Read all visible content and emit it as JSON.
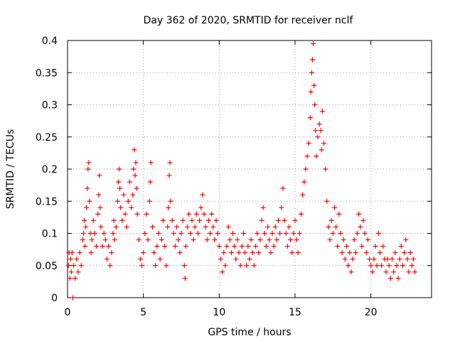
{
  "chart_data": {
    "type": "scatter",
    "title": "Day 362 of 2020, SRMTID for receiver nclf",
    "xlabel": "GPS time / hours",
    "ylabel": "SRMTID / TECUs",
    "xlim": [
      0,
      24
    ],
    "ylim": [
      0,
      0.4
    ],
    "xticks": [
      0,
      5,
      10,
      15,
      20
    ],
    "yticks": [
      0,
      0.05,
      0.1,
      0.15,
      0.2,
      0.25,
      0.3,
      0.35,
      0.4
    ],
    "grid": true,
    "marker": "plus",
    "series": [
      {
        "name": "SRMTID",
        "color": "#ff0000",
        "points": [
          [
            0.05,
            0.05
          ],
          [
            0.1,
            0.07
          ],
          [
            0.15,
            0.03
          ],
          [
            0.2,
            0.06
          ],
          [
            0.25,
            0.04
          ],
          [
            0.3,
            0.07
          ],
          [
            0.35,
            0.0
          ],
          [
            0.4,
            0.05
          ],
          [
            0.5,
            0.03
          ],
          [
            0.6,
            0.06
          ],
          [
            0.7,
            0.04
          ],
          [
            0.8,
            0.07
          ],
          [
            0.9,
            0.05
          ],
          [
            1.0,
            0.09
          ],
          [
            1.05,
            0.1
          ],
          [
            1.1,
            0.12
          ],
          [
            1.15,
            0.08
          ],
          [
            1.2,
            0.11
          ],
          [
            1.25,
            0.14
          ],
          [
            1.3,
            0.17
          ],
          [
            1.35,
            0.2
          ],
          [
            1.4,
            0.21
          ],
          [
            1.45,
            0.15
          ],
          [
            1.5,
            0.1
          ],
          [
            1.55,
            0.07
          ],
          [
            1.6,
            0.09
          ],
          [
            1.7,
            0.12
          ],
          [
            1.8,
            0.1
          ],
          [
            1.9,
            0.08
          ],
          [
            2.0,
            0.13
          ],
          [
            2.05,
            0.16
          ],
          [
            2.1,
            0.19
          ],
          [
            2.15,
            0.14
          ],
          [
            2.2,
            0.11
          ],
          [
            2.3,
            0.08
          ],
          [
            2.4,
            0.1
          ],
          [
            2.5,
            0.09
          ],
          [
            2.6,
            0.06
          ],
          [
            2.7,
            0.08
          ],
          [
            2.8,
            0.05
          ],
          [
            2.9,
            0.07
          ],
          [
            3.0,
            0.1
          ],
          [
            3.05,
            0.12
          ],
          [
            3.1,
            0.09
          ],
          [
            3.2,
            0.11
          ],
          [
            3.3,
            0.15
          ],
          [
            3.35,
            0.18
          ],
          [
            3.4,
            0.2
          ],
          [
            3.45,
            0.17
          ],
          [
            3.5,
            0.14
          ],
          [
            3.6,
            0.12
          ],
          [
            3.7,
            0.16
          ],
          [
            3.8,
            0.13
          ],
          [
            3.9,
            0.11
          ],
          [
            4.0,
            0.15
          ],
          [
            4.1,
            0.18
          ],
          [
            4.2,
            0.14
          ],
          [
            4.3,
            0.16
          ],
          [
            4.35,
            0.2
          ],
          [
            4.4,
            0.23
          ],
          [
            4.45,
            0.19
          ],
          [
            4.5,
            0.21
          ],
          [
            4.55,
            0.17
          ],
          [
            4.6,
            0.13
          ],
          [
            4.7,
            0.09
          ],
          [
            4.8,
            0.06
          ],
          [
            4.9,
            0.05
          ],
          [
            5.0,
            0.07
          ],
          [
            5.1,
            0.1
          ],
          [
            5.2,
            0.13
          ],
          [
            5.3,
            0.09
          ],
          [
            5.4,
            0.15
          ],
          [
            5.45,
            0.18
          ],
          [
            5.5,
            0.21
          ],
          [
            5.6,
            0.11
          ],
          [
            5.7,
            0.07
          ],
          [
            5.8,
            0.05
          ],
          [
            5.9,
            0.08
          ],
          [
            6.0,
            0.1
          ],
          [
            6.1,
            0.06
          ],
          [
            6.2,
            0.09
          ],
          [
            6.3,
            0.12
          ],
          [
            6.4,
            0.08
          ],
          [
            6.5,
            0.05
          ],
          [
            6.6,
            0.11
          ],
          [
            6.65,
            0.14
          ],
          [
            6.7,
            0.19
          ],
          [
            6.75,
            0.21
          ],
          [
            6.8,
            0.15
          ],
          [
            6.9,
            0.12
          ],
          [
            7.0,
            0.1
          ],
          [
            7.1,
            0.08
          ],
          [
            7.2,
            0.11
          ],
          [
            7.3,
            0.09
          ],
          [
            7.4,
            0.07
          ],
          [
            7.5,
            0.1
          ],
          [
            7.6,
            0.12
          ],
          [
            7.7,
            0.05
          ],
          [
            7.75,
            0.03
          ],
          [
            7.8,
            0.08
          ],
          [
            7.9,
            0.11
          ],
          [
            8.0,
            0.13
          ],
          [
            8.1,
            0.1
          ],
          [
            8.2,
            0.12
          ],
          [
            8.3,
            0.09
          ],
          [
            8.4,
            0.11
          ],
          [
            8.5,
            0.13
          ],
          [
            8.6,
            0.1
          ],
          [
            8.7,
            0.12
          ],
          [
            8.8,
            0.14
          ],
          [
            8.9,
            0.16
          ],
          [
            9.0,
            0.13
          ],
          [
            9.1,
            0.11
          ],
          [
            9.2,
            0.09
          ],
          [
            9.3,
            0.12
          ],
          [
            9.4,
            0.1
          ],
          [
            9.5,
            0.13
          ],
          [
            9.6,
            0.11
          ],
          [
            9.7,
            0.09
          ],
          [
            9.8,
            0.12
          ],
          [
            9.9,
            0.1
          ],
          [
            10.0,
            0.08
          ],
          [
            10.1,
            0.06
          ],
          [
            10.2,
            0.04
          ],
          [
            10.3,
            0.07
          ],
          [
            10.4,
            0.05
          ],
          [
            10.5,
            0.08
          ],
          [
            10.6,
            0.11
          ],
          [
            10.7,
            0.09
          ],
          [
            10.8,
            0.07
          ],
          [
            10.9,
            0.1
          ],
          [
            11.0,
            0.08
          ],
          [
            11.1,
            0.06
          ],
          [
            11.2,
            0.09
          ],
          [
            11.3,
            0.07
          ],
          [
            11.4,
            0.05
          ],
          [
            11.5,
            0.08
          ],
          [
            11.6,
            0.1
          ],
          [
            11.7,
            0.07
          ],
          [
            11.8,
            0.05
          ],
          [
            11.9,
            0.08
          ],
          [
            12.0,
            0.06
          ],
          [
            12.1,
            0.09
          ],
          [
            12.2,
            0.07
          ],
          [
            12.3,
            0.05
          ],
          [
            12.4,
            0.08
          ],
          [
            12.5,
            0.1
          ],
          [
            12.6,
            0.07
          ],
          [
            12.7,
            0.09
          ],
          [
            12.8,
            0.12
          ],
          [
            12.9,
            0.14
          ],
          [
            13.0,
            0.1
          ],
          [
            13.1,
            0.08
          ],
          [
            13.2,
            0.11
          ],
          [
            13.3,
            0.09
          ],
          [
            13.4,
            0.07
          ],
          [
            13.5,
            0.1
          ],
          [
            13.6,
            0.08
          ],
          [
            13.7,
            0.11
          ],
          [
            13.8,
            0.09
          ],
          [
            13.9,
            0.12
          ],
          [
            14.0,
            0.1
          ],
          [
            14.1,
            0.14
          ],
          [
            14.2,
            0.17
          ],
          [
            14.3,
            0.12
          ],
          [
            14.4,
            0.1
          ],
          [
            14.5,
            0.08
          ],
          [
            14.6,
            0.11
          ],
          [
            14.7,
            0.09
          ],
          [
            14.8,
            0.07
          ],
          [
            14.9,
            0.1
          ],
          [
            15.0,
            0.12
          ],
          [
            15.1,
            0.09
          ],
          [
            15.2,
            0.07
          ],
          [
            15.3,
            0.1
          ],
          [
            15.4,
            0.13
          ],
          [
            15.5,
            0.16
          ],
          [
            15.6,
            0.18
          ],
          [
            15.7,
            0.2
          ],
          [
            15.8,
            0.22
          ],
          [
            15.9,
            0.24
          ],
          [
            16.0,
            0.28
          ],
          [
            16.05,
            0.32
          ],
          [
            16.1,
            0.35
          ],
          [
            16.15,
            0.37
          ],
          [
            16.2,
            0.395
          ],
          [
            16.25,
            0.33
          ],
          [
            16.3,
            0.3
          ],
          [
            16.35,
            0.26
          ],
          [
            16.4,
            0.22
          ],
          [
            16.5,
            0.25
          ],
          [
            16.6,
            0.27
          ],
          [
            16.7,
            0.26
          ],
          [
            16.75,
            0.23
          ],
          [
            16.8,
            0.29
          ],
          [
            16.9,
            0.24
          ],
          [
            17.0,
            0.2
          ],
          [
            17.1,
            0.15
          ],
          [
            17.2,
            0.11
          ],
          [
            17.3,
            0.09
          ],
          [
            17.4,
            0.12
          ],
          [
            17.5,
            0.1
          ],
          [
            17.6,
            0.14
          ],
          [
            17.7,
            0.11
          ],
          [
            17.8,
            0.08
          ],
          [
            17.9,
            0.13
          ],
          [
            18.0,
            0.1
          ],
          [
            18.1,
            0.07
          ],
          [
            18.2,
            0.09
          ],
          [
            18.3,
            0.06
          ],
          [
            18.4,
            0.08
          ],
          [
            18.5,
            0.05
          ],
          [
            18.6,
            0.07
          ],
          [
            18.7,
            0.04
          ],
          [
            18.8,
            0.06
          ],
          [
            18.9,
            0.09
          ],
          [
            19.0,
            0.07
          ],
          [
            19.1,
            0.1
          ],
          [
            19.2,
            0.13
          ],
          [
            19.3,
            0.11
          ],
          [
            19.4,
            0.08
          ],
          [
            19.5,
            0.12
          ],
          [
            19.6,
            0.1
          ],
          [
            19.7,
            0.07
          ],
          [
            19.8,
            0.09
          ],
          [
            19.9,
            0.06
          ],
          [
            20.0,
            0.05
          ],
          [
            20.1,
            0.04
          ],
          [
            20.2,
            0.06
          ],
          [
            20.3,
            0.08
          ],
          [
            20.4,
            0.05
          ],
          [
            20.5,
            0.1
          ],
          [
            20.6,
            0.07
          ],
          [
            20.7,
            0.05
          ],
          [
            20.8,
            0.08
          ],
          [
            20.9,
            0.06
          ],
          [
            21.0,
            0.04
          ],
          [
            21.1,
            0.06
          ],
          [
            21.2,
            0.05
          ],
          [
            21.3,
            0.03
          ],
          [
            21.4,
            0.06
          ],
          [
            21.5,
            0.04
          ],
          [
            21.6,
            0.07
          ],
          [
            21.7,
            0.05
          ],
          [
            21.8,
            0.03
          ],
          [
            21.9,
            0.06
          ],
          [
            22.0,
            0.08
          ],
          [
            22.1,
            0.05
          ],
          [
            22.2,
            0.07
          ],
          [
            22.3,
            0.09
          ],
          [
            22.4,
            0.06
          ],
          [
            22.5,
            0.04
          ],
          [
            22.6,
            0.07
          ],
          [
            22.7,
            0.05
          ],
          [
            22.8,
            0.06
          ],
          [
            22.9,
            0.04
          ]
        ]
      }
    ]
  }
}
